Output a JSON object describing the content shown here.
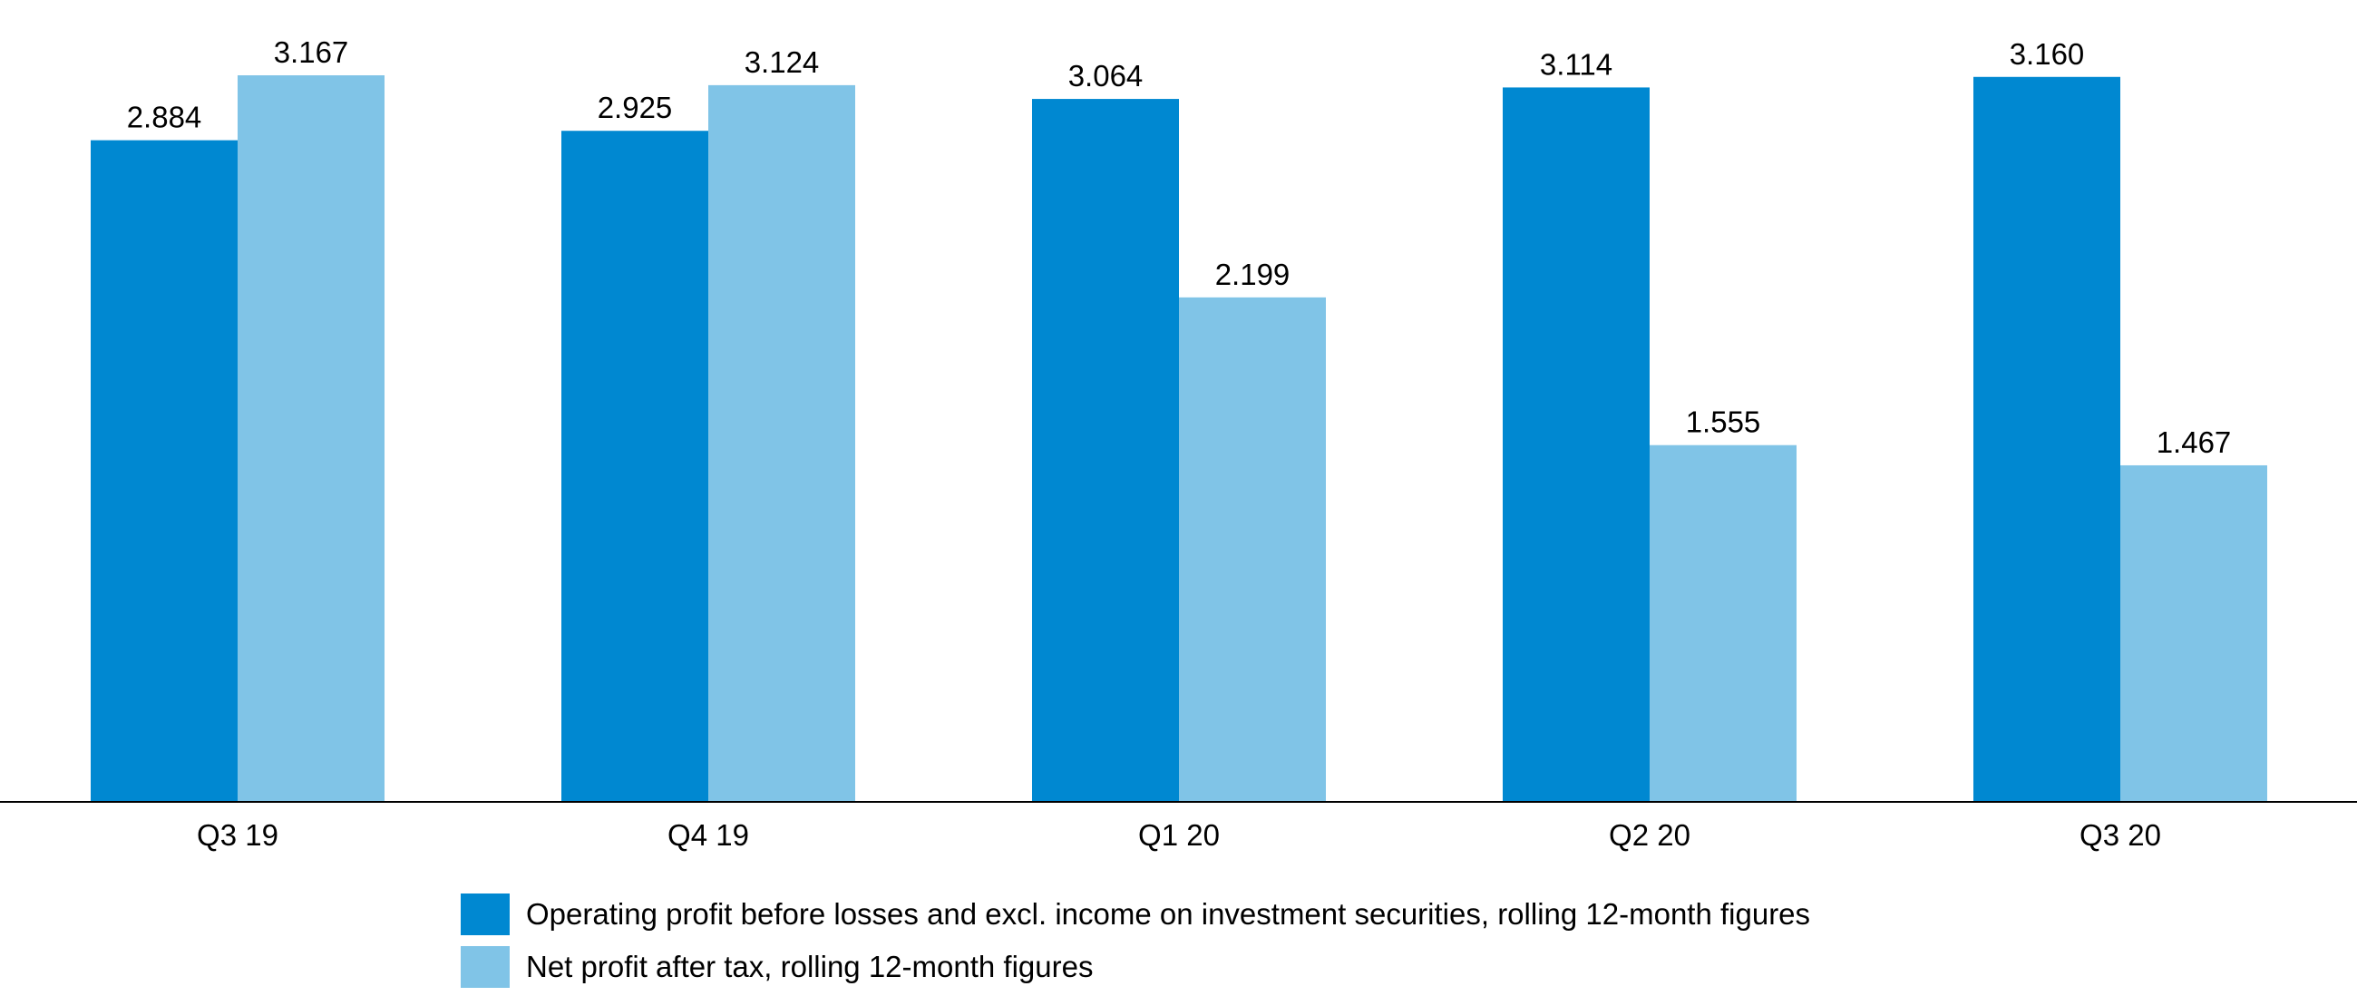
{
  "chart_data": {
    "type": "bar",
    "categories": [
      "Q3 19",
      "Q4 19",
      "Q1 20",
      "Q2 20",
      "Q3 20"
    ],
    "series": [
      {
        "name": "Operating profit before losses and excl. income on investment securities, rolling 12-month figures",
        "values": [
          2.884,
          2.925,
          3.064,
          3.114,
          3.16
        ],
        "labels": [
          "2.884",
          "2.925",
          "3.064",
          "3.114",
          "3.160"
        ],
        "color": "#0088d1"
      },
      {
        "name": "Net profit after tax, rolling 12-month figures",
        "values": [
          3.167,
          3.124,
          2.199,
          1.555,
          1.467
        ],
        "labels": [
          "3.167",
          "3.124",
          "2.199",
          "1.555",
          "1.467"
        ],
        "color": "#80c4e7"
      }
    ],
    "ylim": [
      0,
      3.3
    ],
    "grid": false,
    "legend_position": "bottom",
    "axis_color": "#000000"
  }
}
